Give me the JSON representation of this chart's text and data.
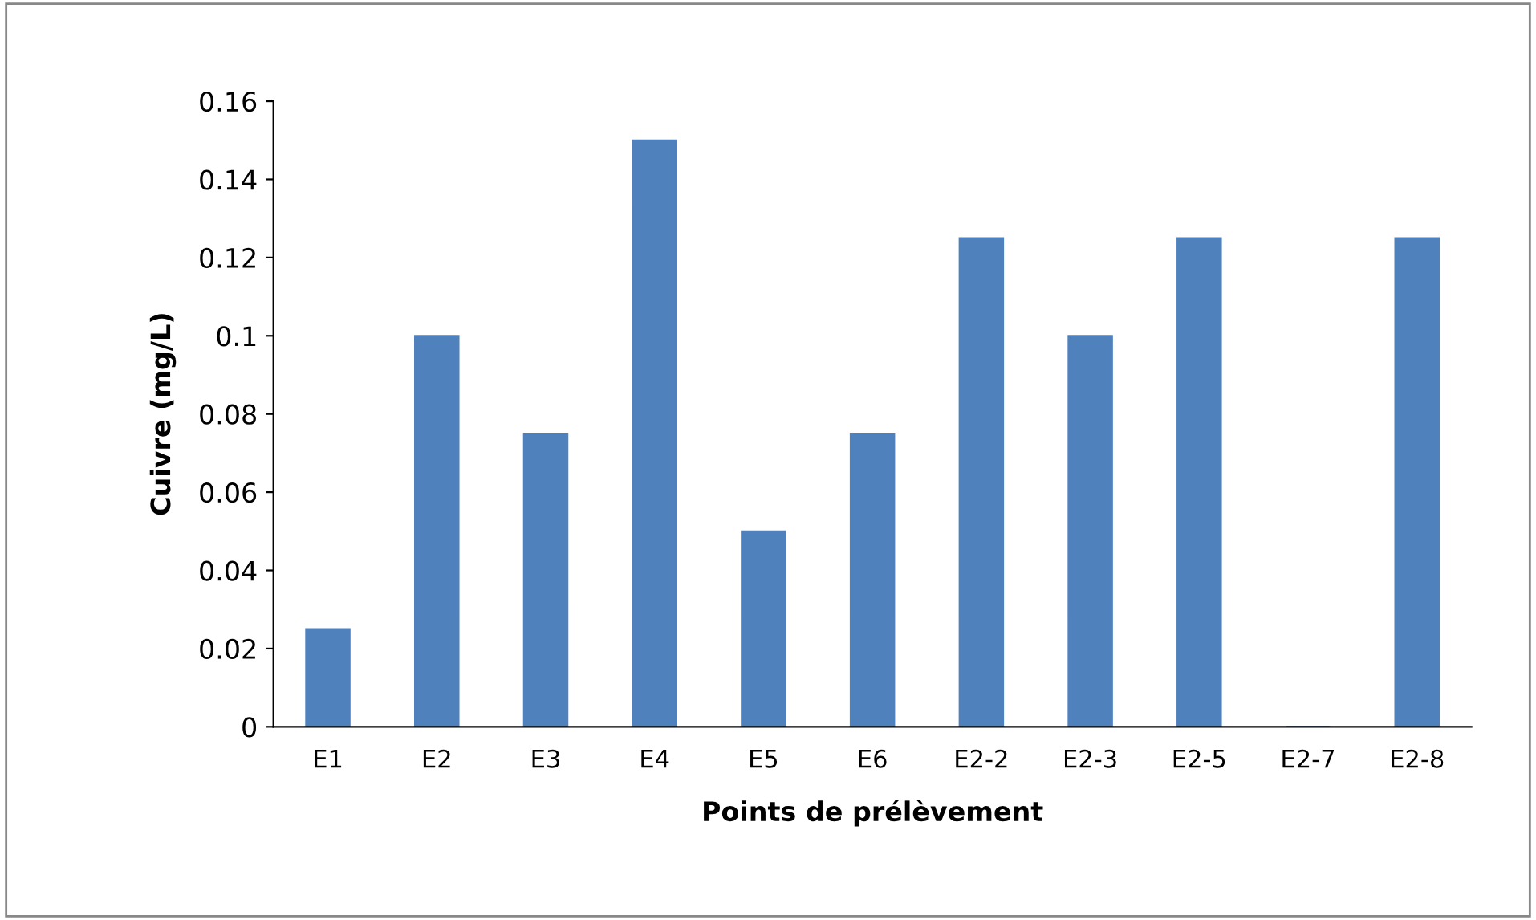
{
  "chart_data": {
    "type": "bar",
    "xlabel": "Points de prélèvement",
    "ylabel": "Cuivre (mg/L)",
    "categories": [
      "E1",
      "E2",
      "E3",
      "E4",
      "E5",
      "E6",
      "E2-2",
      "E2-3",
      "E2-5",
      "E2-7",
      "E2-8"
    ],
    "values": [
      0.025,
      0.1,
      0.075,
      0.15,
      0.05,
      0.075,
      0.125,
      0.1,
      0.125,
      0,
      0.125
    ],
    "color": "#4f81bd",
    "ylim": [
      0,
      0.16
    ],
    "yticks": [
      0,
      0.02,
      0.04,
      0.06,
      0.08,
      0.1,
      0.12,
      0.14,
      0.16
    ],
    "grid": false,
    "legend": false
  }
}
